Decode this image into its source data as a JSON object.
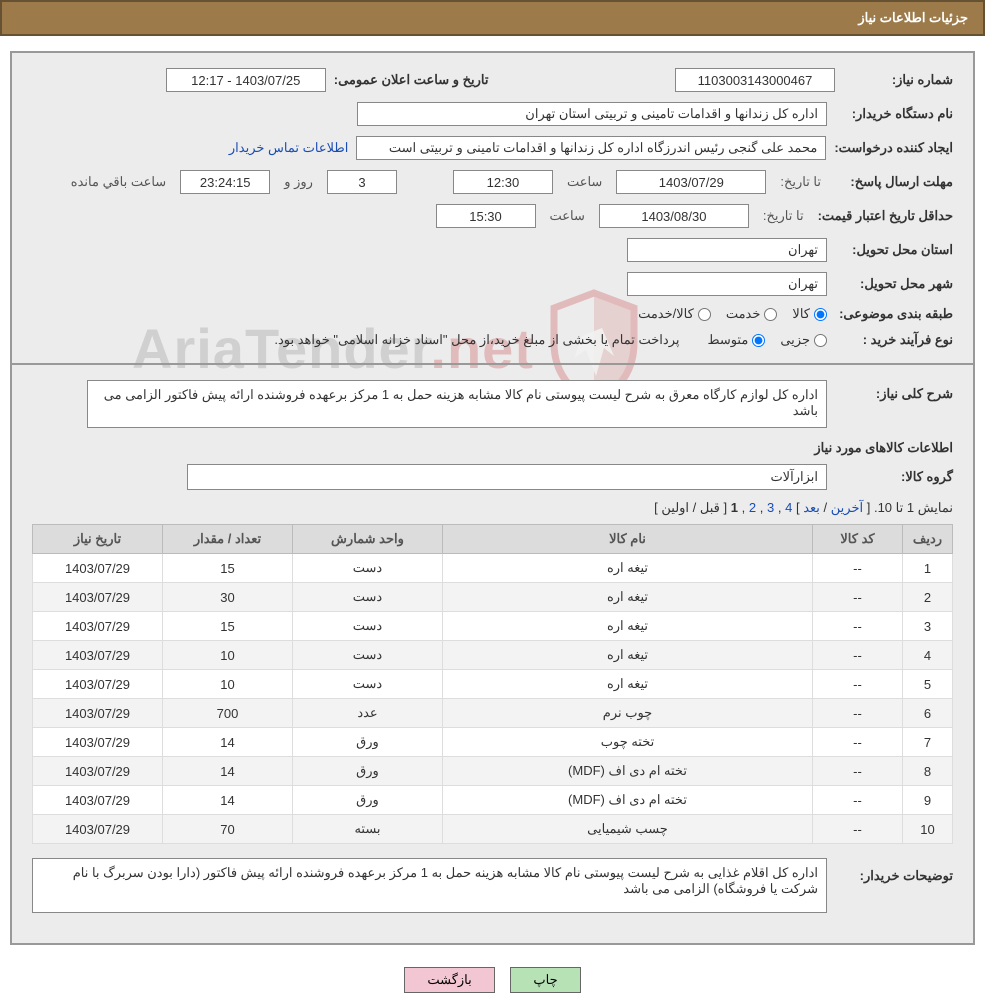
{
  "header": {
    "title": "جزئیات اطلاعات نیاز"
  },
  "fields": {
    "need_no_label": "شماره نیاز:",
    "need_no": "1103003143000467",
    "ann_label": "تاریخ و ساعت اعلان عمومی:",
    "ann_value": "1403/07/25 - 12:17",
    "buyer_label": "نام دستگاه خریدار:",
    "buyer_value": "اداره کل زندانها و اقدامات تامینی و تربیتی استان تهران",
    "requester_label": "ایجاد کننده درخواست:",
    "requester_value": "محمد علی گنجی رئیس اندرزگاه  اداره کل زندانها و اقدامات تامینی و تربیتی است",
    "contact_link": "اطلاعات تماس خریدار",
    "deadline_label": "مهلت ارسال پاسخ:",
    "until": "تا تاریخ:",
    "deadline_date": "1403/07/29",
    "time_lbl": "ساعت",
    "deadline_time": "12:30",
    "days": "3",
    "days_and": "روز و",
    "remain_time": "23:24:15",
    "remain_lbl": "ساعت باقي مانده",
    "validity_label": "حداقل تاریخ اعتبار قیمت:",
    "validity_date": "1403/08/30",
    "validity_time": "15:30",
    "province_label": "استان محل تحویل:",
    "province": "تهران",
    "city_label": "شهر محل تحویل:",
    "city": "تهران",
    "class_label": "طبقه بندی موضوعی:",
    "class_goods": "کالا",
    "class_service": "خدمت",
    "class_both": "کالا/خدمت",
    "proc_label": "نوع فرآیند خرید :",
    "proc_small": "جزیی",
    "proc_medium": "متوسط",
    "proc_note": "پرداخت تمام یا بخشی از مبلغ خرید،از محل \"اسناد خزانه اسلامی\" خواهد بود.",
    "desc_label": "شرح کلی نیاز:",
    "desc_value": "اداره کل لوازم کارگاه معرق به شرح لیست پیوستی نام کالا  مشابه هزینه حمل به 1 مرکز برعهده فروشنده ارائه پیش فاکتور الزامی می باشد",
    "items_title": "اطلاعات کالاهای مورد نیاز",
    "group_label": "گروه کالا:",
    "group_value": "ابزارآلات",
    "buyer_notes_label": "توضیحات خریدار:",
    "buyer_notes_value": "اداره کل اقلام غذایی به شرح لیست پیوستی نام کالا مشابه هزینه حمل به 1 مرکز برعهده فروشنده ارائه پیش فاکتور (دارا بودن سربرگ با نام شرکت یا فروشگاه) الزامی می باشد"
  },
  "pager": {
    "prefix": "نمایش 1 تا 10. [",
    "last": "آخرین",
    "sep": " / ",
    "next": "بعد",
    "p4": "4",
    "p3": "3",
    "p2": "2",
    "p1": "1",
    "prev": "قبل",
    "first": "اولین",
    "suffix": "]"
  },
  "table": {
    "headers": {
      "row": "ردیف",
      "code": "کد کالا",
      "name": "نام کالا",
      "unit": "واحد شمارش",
      "qty": "تعداد / مقدار",
      "date": "تاریخ نیاز"
    },
    "rows": [
      {
        "row": "1",
        "code": "--",
        "name": "تیغه اره",
        "unit": "دست",
        "qty": "15",
        "date": "1403/07/29"
      },
      {
        "row": "2",
        "code": "--",
        "name": "تیغه اره",
        "unit": "دست",
        "qty": "30",
        "date": "1403/07/29"
      },
      {
        "row": "3",
        "code": "--",
        "name": "تیغه اره",
        "unit": "دست",
        "qty": "15",
        "date": "1403/07/29"
      },
      {
        "row": "4",
        "code": "--",
        "name": "تیغه اره",
        "unit": "دست",
        "qty": "10",
        "date": "1403/07/29"
      },
      {
        "row": "5",
        "code": "--",
        "name": "تیغه اره",
        "unit": "دست",
        "qty": "10",
        "date": "1403/07/29"
      },
      {
        "row": "6",
        "code": "--",
        "name": "چوب نرم",
        "unit": "عدد",
        "qty": "700",
        "date": "1403/07/29"
      },
      {
        "row": "7",
        "code": "--",
        "name": "تخته چوب",
        "unit": "ورق",
        "qty": "14",
        "date": "1403/07/29"
      },
      {
        "row": "8",
        "code": "--",
        "name": "تخته ام دی اف (MDF)",
        "unit": "ورق",
        "qty": "14",
        "date": "1403/07/29"
      },
      {
        "row": "9",
        "code": "--",
        "name": "تخته ام دی اف (MDF)",
        "unit": "ورق",
        "qty": "14",
        "date": "1403/07/29"
      },
      {
        "row": "10",
        "code": "--",
        "name": "چسب شیمیایی",
        "unit": "بسته",
        "qty": "70",
        "date": "1403/07/29"
      }
    ]
  },
  "buttons": {
    "print": "چاپ",
    "back": "بازگشت"
  },
  "watermark": {
    "text_plain": "AriaTender",
    "text_red": ".net"
  },
  "colors": {
    "header_bg": "#9c7a4a",
    "panel_bg": "#ececec",
    "link": "#1a4db3",
    "btn_green": "#b6e2b6",
    "btn_pink": "#f2c6d2"
  }
}
